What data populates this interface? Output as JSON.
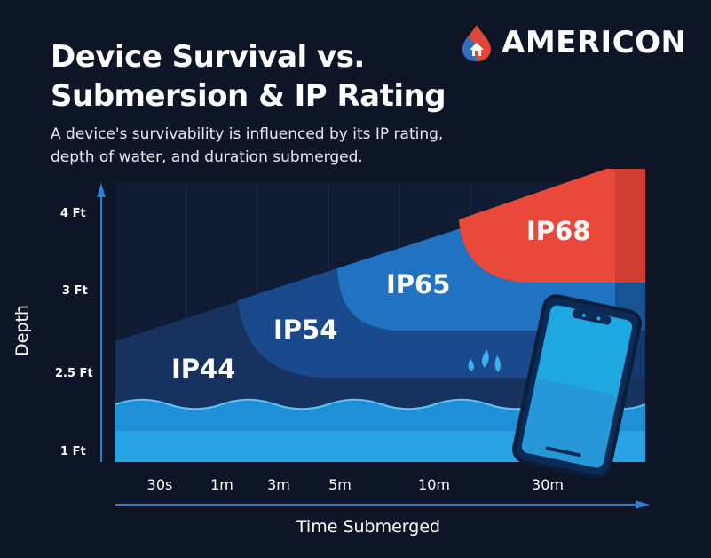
{
  "brand": {
    "name": "AMERICON",
    "colors": {
      "red": "#e0473b",
      "blue": "#2f6fc0"
    }
  },
  "chart_data": {
    "type": "area",
    "title": "Device Survival vs. Submersion & IP Rating",
    "subtitle": "A device's survivability is influenced by its IP rating, depth of water, and duration submerged.",
    "xlabel": "Time Submerged",
    "ylabel": "Depth",
    "x_categories": [
      "30s",
      "1m",
      "3m",
      "5m",
      "10m",
      "30m"
    ],
    "y_ticks": [
      {
        "label": "4 Ft",
        "value": 4
      },
      {
        "label": "3 Ft",
        "value": 3
      },
      {
        "label": "2.5 Ft",
        "value": 2.5
      },
      {
        "label": "1 Ft",
        "value": 1
      }
    ],
    "zones": [
      {
        "name": "IP44",
        "color": "#17325e"
      },
      {
        "name": "IP54",
        "color": "#1b4a8c"
      },
      {
        "name": "IP65",
        "color": "#2173c2"
      },
      {
        "name": "IP68",
        "color": "#e8493a"
      }
    ],
    "illustration": "smartphone-submerged"
  }
}
